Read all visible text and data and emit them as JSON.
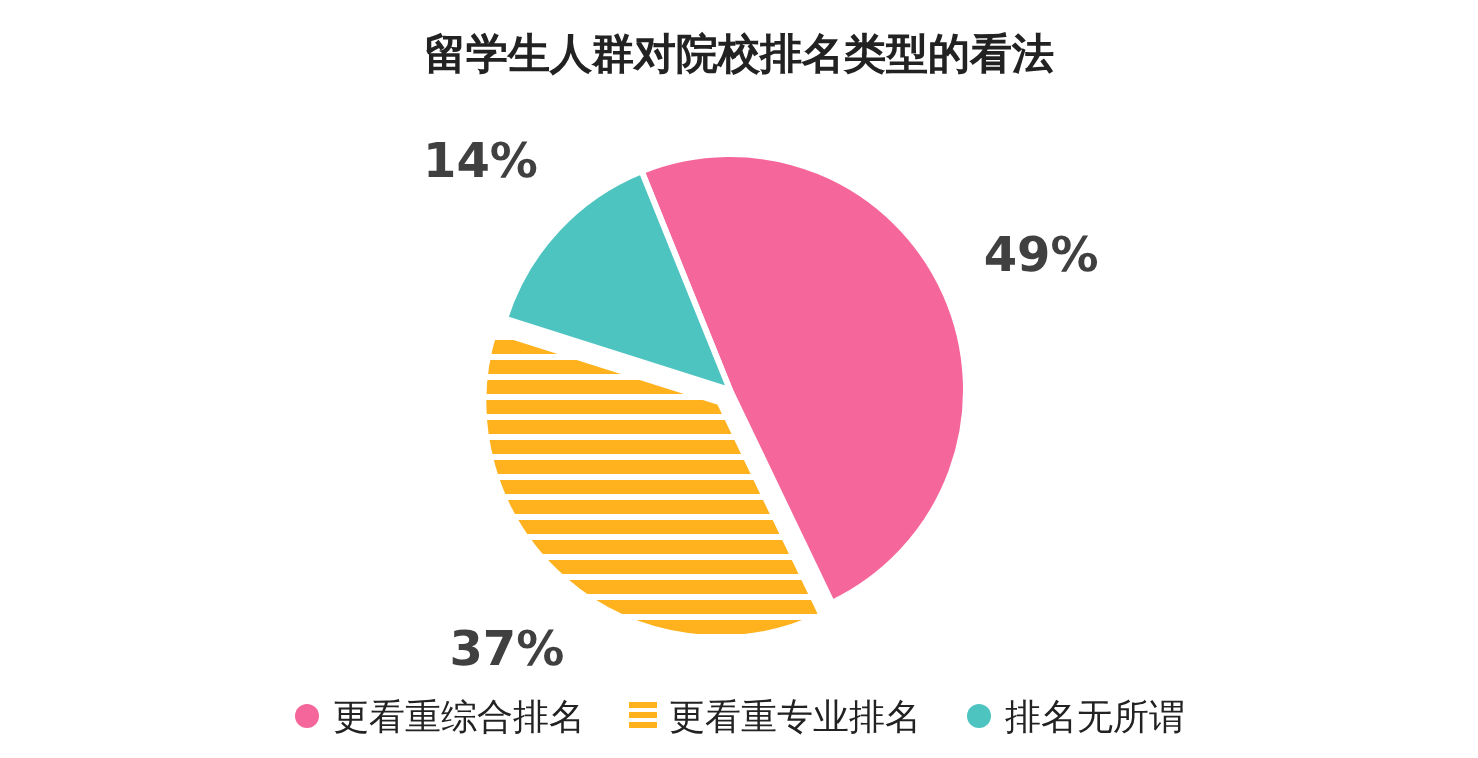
{
  "chart_data": {
    "type": "pie",
    "title": "留学生人群对院校排名类型的看法",
    "categories": [
      "更看重综合排名",
      "更看重专业排名",
      "排名无所谓"
    ],
    "values": [
      49,
      37,
      14
    ],
    "colors": [
      "#f5679a",
      "#ffb21e",
      "#4ec4c1"
    ],
    "value_labels": [
      "49%",
      "37%",
      "14%"
    ],
    "legend": "bottom"
  }
}
